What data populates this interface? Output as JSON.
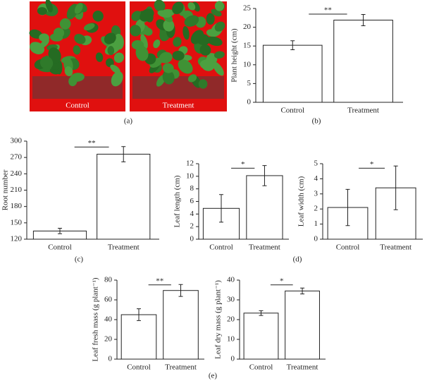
{
  "photo": {
    "labels": [
      "Control",
      "Treatment"
    ]
  },
  "panel_labels": [
    "(a)",
    "(b)",
    "(c)",
    "(d)",
    "(e)"
  ],
  "chart_data": [
    {
      "type": "bar",
      "ylabel": "Plant height (cm)",
      "categories": [
        "Control",
        "Treatment"
      ],
      "values": [
        15.2,
        21.9
      ],
      "errors": [
        1.2,
        1.5
      ],
      "significance": "**",
      "ylim": [
        0,
        25
      ],
      "yticks": [
        0,
        5,
        10,
        15,
        20,
        25
      ],
      "color": "#ffffff"
    },
    {
      "type": "bar",
      "ylabel": "Root number",
      "categories": [
        "Control",
        "Treatment"
      ],
      "values": [
        135,
        276
      ],
      "errors": [
        5,
        14
      ],
      "significance": "**",
      "ylim": [
        120,
        300
      ],
      "yticks": [
        120,
        150,
        180,
        210,
        240,
        270,
        300
      ],
      "color": "#ffffff"
    },
    {
      "type": "bar",
      "ylabel": "Leaf length (cm)",
      "categories": [
        "Control",
        "Treatment"
      ],
      "values": [
        4.9,
        10.1
      ],
      "errors": [
        2.2,
        1.6
      ],
      "significance": "*",
      "ylim": [
        0,
        12
      ],
      "yticks": [
        0,
        2,
        4,
        6,
        8,
        10,
        12
      ],
      "color": "#ffffff"
    },
    {
      "type": "bar",
      "ylabel": "Leaf width (cm)",
      "categories": [
        "Control",
        "Treatment"
      ],
      "values": [
        2.1,
        3.4
      ],
      "errors": [
        1.2,
        1.45
      ],
      "significance": "*",
      "ylim": [
        0,
        5
      ],
      "yticks": [
        0,
        1,
        2,
        3,
        4,
        5
      ],
      "color": "#ffffff"
    },
    {
      "type": "bar",
      "ylabel": "Leaf fresh mass (g plant⁻¹)",
      "categories": [
        "Control",
        "Treatment"
      ],
      "values": [
        45,
        69.5
      ],
      "errors": [
        6,
        6
      ],
      "significance": "**",
      "ylim": [
        0,
        80
      ],
      "yticks": [
        0,
        20,
        40,
        60,
        80
      ],
      "color": "#ffffff"
    },
    {
      "type": "bar",
      "ylabel": "Leaf dry mass (g plant⁻¹)",
      "categories": [
        "Control",
        "Treatment"
      ],
      "values": [
        23.3,
        34.5
      ],
      "errors": [
        1.2,
        1.5
      ],
      "significance": "*",
      "ylim": [
        0,
        40
      ],
      "yticks": [
        0,
        10,
        20,
        30,
        40
      ],
      "color": "#ffffff"
    }
  ]
}
